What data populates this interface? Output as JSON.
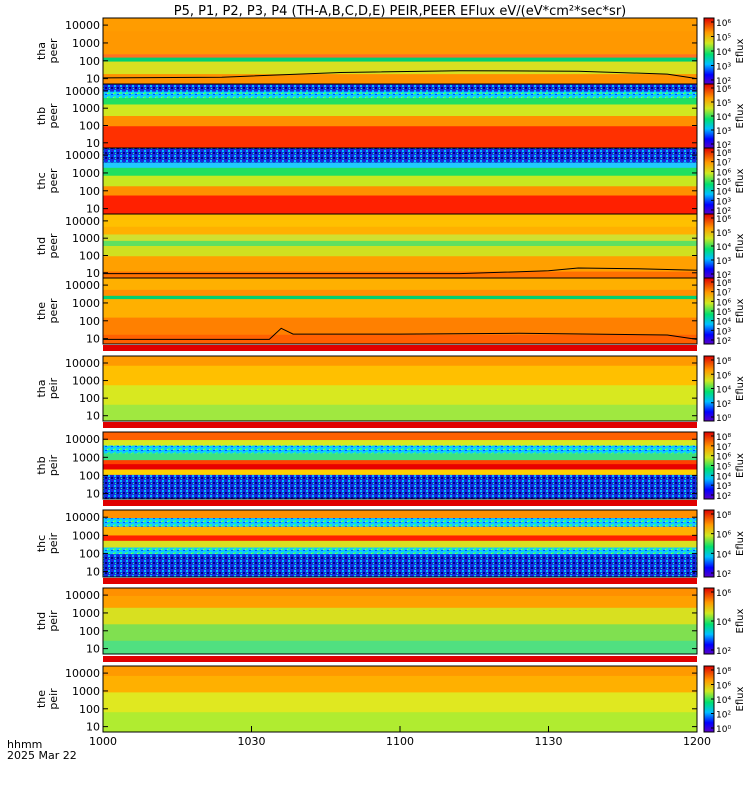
{
  "chart_data": {
    "type": "heatmap",
    "title": "P5, P1, P2, P3, P4 (TH-A,B,C,D,E) PEIR,PEER EFlux eV/(eV*cm²*sec*sr)",
    "colorbar_label": "Eflux",
    "x": {
      "ticks": [
        "1000",
        "1030",
        "1100",
        "1130",
        "1200"
      ],
      "label_line1": "hhmm",
      "label_line2": "2025 Mar 22"
    },
    "y_ticks": [
      "10000",
      "1000",
      "100",
      "10"
    ],
    "y_scale": "log",
    "panels": [
      {
        "label1": "tha",
        "label2": "peer",
        "cbar_ticks": [
          "10⁶",
          "10⁵",
          "10⁴",
          "10³",
          "10²"
        ],
        "style": "peer_a",
        "line": [
          [
            0,
            11
          ],
          [
            0.2,
            12
          ],
          [
            0.4,
            22
          ],
          [
            0.6,
            28
          ],
          [
            0.8,
            26
          ],
          [
            0.95,
            18
          ],
          [
            1,
            10
          ]
        ]
      },
      {
        "label1": "thb",
        "label2": "peer",
        "cbar_ticks": [
          "10⁶",
          "10⁵",
          "10⁴",
          "10³",
          "10²"
        ],
        "style": "peer_b",
        "line": []
      },
      {
        "label1": "thc",
        "label2": "peer",
        "cbar_ticks": [
          "10⁸",
          "10⁷",
          "10⁶",
          "10⁵",
          "10⁴",
          "10³",
          "10²"
        ],
        "style": "peer_c",
        "line": []
      },
      {
        "label1": "thd",
        "label2": "peer",
        "cbar_ticks": [
          "10⁶",
          "10⁵",
          "10⁴",
          "10³",
          "10²"
        ],
        "style": "peer_d",
        "line": [
          [
            0,
            9
          ],
          [
            0.6,
            9
          ],
          [
            0.75,
            13
          ],
          [
            0.8,
            19
          ],
          [
            0.9,
            17
          ],
          [
            1,
            14
          ]
        ]
      },
      {
        "label1": "the",
        "label2": "peer",
        "cbar_ticks": [
          "10⁸",
          "10⁷",
          "10⁶",
          "10⁵",
          "10⁴",
          "10³",
          "10²"
        ],
        "style": "peer_e",
        "line": [
          [
            0,
            9
          ],
          [
            0.28,
            9
          ],
          [
            0.3,
            38
          ],
          [
            0.32,
            18
          ],
          [
            0.5,
            18
          ],
          [
            0.7,
            20
          ],
          [
            0.95,
            16
          ],
          [
            1,
            9
          ]
        ]
      },
      {
        "label1": "tha",
        "label2": "peir",
        "cbar_ticks": [
          "10⁸",
          "10⁶",
          "10⁴",
          "10²",
          "10⁰"
        ],
        "style": "peir_a",
        "line": []
      },
      {
        "label1": "thb",
        "label2": "peir",
        "cbar_ticks": [
          "10⁸",
          "10⁷",
          "10⁶",
          "10⁵",
          "10⁴",
          "10³",
          "10²"
        ],
        "style": "peir_b",
        "line": []
      },
      {
        "label1": "thc",
        "label2": "peir",
        "cbar_ticks": [
          "10⁸",
          "10⁶",
          "10⁴",
          "10²"
        ],
        "style": "peir_c",
        "line": []
      },
      {
        "label1": "thd",
        "label2": "peir",
        "cbar_ticks": [
          "10⁶",
          "10⁴",
          "10²"
        ],
        "style": "peir_d",
        "line": []
      },
      {
        "label1": "the",
        "label2": "peir",
        "cbar_ticks": [
          "10⁸",
          "10⁶",
          "10⁴",
          "10²",
          "10⁰"
        ],
        "style": "peir_e",
        "line": []
      }
    ]
  }
}
